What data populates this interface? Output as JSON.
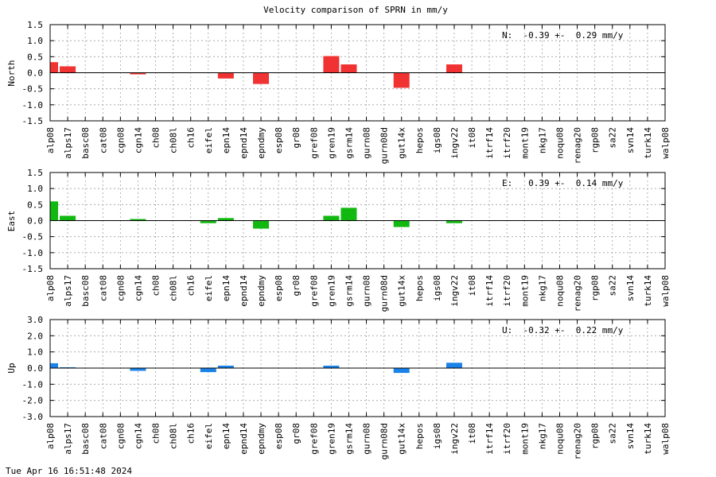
{
  "title": "Velocity comparison of SPRN in mm/y",
  "timestamp": "Tue Apr 16 16:51:48 2024",
  "chart_data": [
    {
      "type": "bar",
      "panel": "north",
      "ylabel": "North",
      "ylim": [
        -1.5,
        1.5
      ],
      "yticks": [
        -1.5,
        -1.0,
        -0.5,
        0.0,
        0.5,
        1.0,
        1.5
      ],
      "color": "#f03232",
      "stat_label": "N:  -0.39 +-  0.29 mm/y",
      "grid": true,
      "categories": [
        "alp08",
        "alps17",
        "basc08",
        "cat08",
        "cgn08",
        "cgn14",
        "ch08",
        "ch08l",
        "ch16",
        "eifel",
        "epn14",
        "epnd14",
        "epndmy",
        "esp08",
        "gr08",
        "gref08",
        "gren19",
        "gsrm14",
        "gurn08",
        "gurn08d",
        "gut14x",
        "hepos",
        "igs08",
        "ingv22",
        "it08",
        "itrf14",
        "itrf20",
        "mont19",
        "nkg17",
        "noqu08",
        "renag20",
        "rgp08",
        "sa22",
        "svn14",
        "turk14",
        "walp08"
      ],
      "values": [
        0.33,
        0.2,
        0,
        0,
        0,
        -0.05,
        0,
        0,
        0,
        0,
        -0.18,
        0,
        -0.35,
        0,
        0,
        0,
        0.52,
        0.26,
        0,
        0,
        -0.47,
        0,
        0,
        0.26,
        0,
        0,
        0,
        0,
        0,
        0,
        0,
        0,
        0,
        0,
        0,
        0
      ]
    },
    {
      "type": "bar",
      "panel": "east",
      "ylabel": "East",
      "ylim": [
        -1.5,
        1.5
      ],
      "yticks": [
        -1.5,
        -1.0,
        -0.5,
        0.0,
        0.5,
        1.0,
        1.5
      ],
      "color": "#10b810",
      "stat_label": "E:   0.39 +-  0.14 mm/y",
      "grid": true,
      "categories": [
        "alp08",
        "alps17",
        "basc08",
        "cat08",
        "cgn08",
        "cgn14",
        "ch08",
        "ch08l",
        "ch16",
        "eifel",
        "epn14",
        "epnd14",
        "epndmy",
        "esp08",
        "gr08",
        "gref08",
        "gren19",
        "gsrm14",
        "gurn08",
        "gurn08d",
        "gut14x",
        "hepos",
        "igs08",
        "ingv22",
        "it08",
        "itrf14",
        "itrf20",
        "mont19",
        "nkg17",
        "noqu08",
        "renag20",
        "rgp08",
        "sa22",
        "svn14",
        "turk14",
        "walp08"
      ],
      "values": [
        0.6,
        0.15,
        0,
        0,
        0,
        0.05,
        0,
        0,
        0,
        -0.08,
        0.08,
        0,
        -0.25,
        0,
        0,
        0,
        0.15,
        0.4,
        0,
        0,
        -0.2,
        0,
        0,
        -0.08,
        0,
        0,
        0,
        0,
        0,
        0,
        0,
        0,
        0,
        0,
        0,
        0
      ]
    },
    {
      "type": "bar",
      "panel": "up",
      "ylabel": "Up",
      "ylim": [
        -3.0,
        3.0
      ],
      "yticks": [
        -3.0,
        -2.0,
        -1.0,
        0.0,
        1.0,
        2.0,
        3.0
      ],
      "color": "#1a82e8",
      "stat_label": "U:  -0.32 +-  0.22 mm/y",
      "grid": true,
      "categories": [
        "alp08",
        "alps17",
        "basc08",
        "cat08",
        "cgn08",
        "cgn14",
        "ch08",
        "ch08l",
        "ch16",
        "eifel",
        "epn14",
        "epnd14",
        "epndmy",
        "esp08",
        "gr08",
        "gref08",
        "gren19",
        "gsrm14",
        "gurn08",
        "gurn08d",
        "gut14x",
        "hepos",
        "igs08",
        "ingv22",
        "it08",
        "itrf14",
        "itrf20",
        "mont19",
        "nkg17",
        "noqu08",
        "renag20",
        "rgp08",
        "sa22",
        "svn14",
        "turk14",
        "walp08"
      ],
      "values": [
        0.3,
        0.05,
        0,
        0,
        0,
        -0.17,
        0,
        0,
        0,
        -0.25,
        0.15,
        0,
        0,
        0,
        0,
        0,
        0.15,
        0,
        0,
        0,
        -0.3,
        0,
        0,
        0.33,
        0,
        0,
        0,
        0,
        0,
        0,
        0,
        0,
        0,
        0,
        0,
        0
      ]
    }
  ]
}
